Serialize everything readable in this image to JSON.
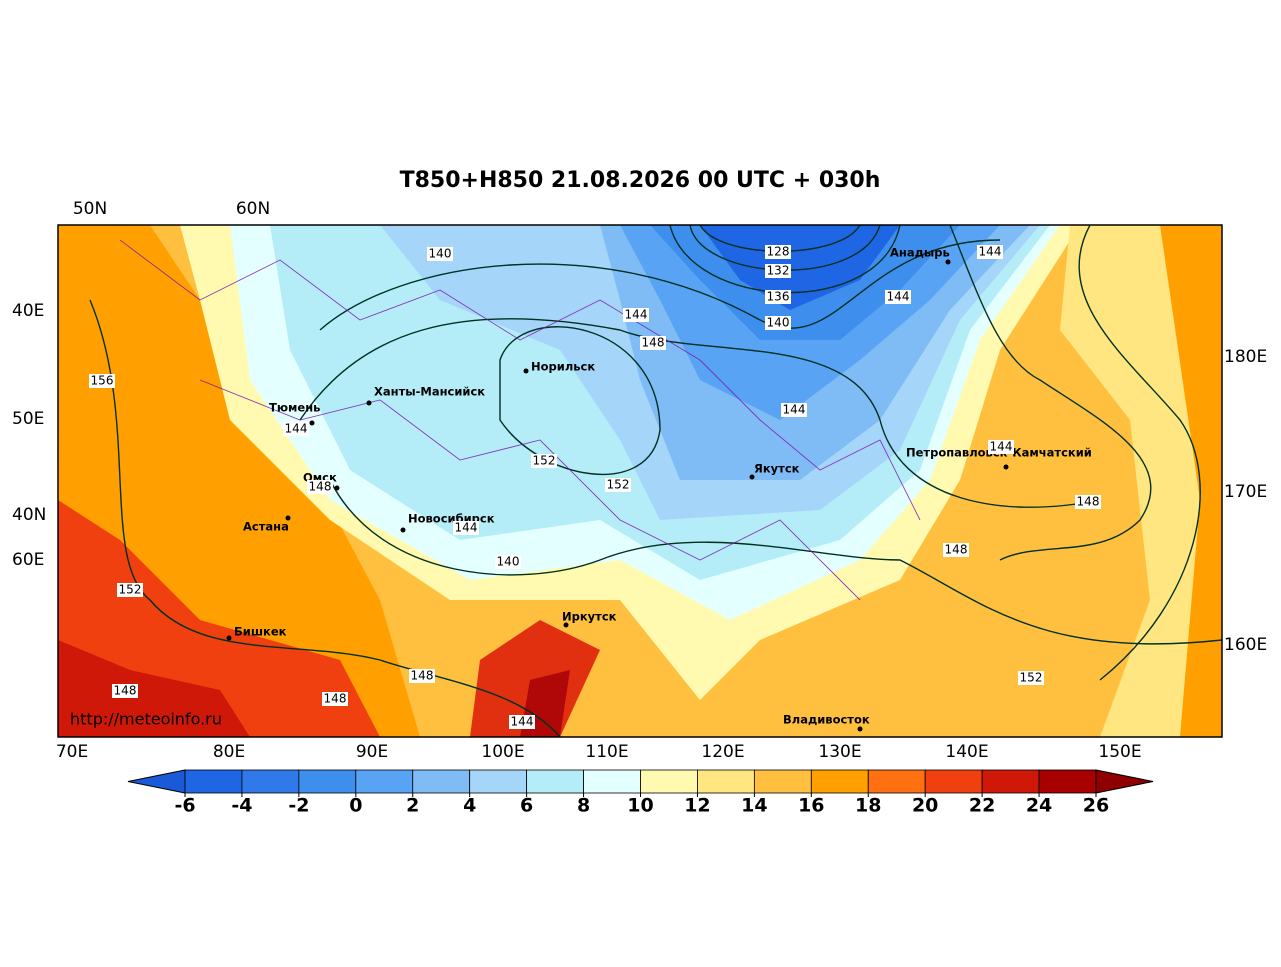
{
  "title": "T850+H850 21.08.2026 00 UTC + 030h",
  "top_labels": [
    "50N",
    "60N"
  ],
  "left_labels": [
    "40E",
    "50E",
    "40N",
    "60E"
  ],
  "right_labels": [
    "180E",
    "170E",
    "160E"
  ],
  "bottom_labels": [
    "70E",
    "80E",
    "90E",
    "100E",
    "110E",
    "120E",
    "130E",
    "140E",
    "150E"
  ],
  "cities": [
    "Анадырь",
    "Норильск",
    "Ханты-Мансийск",
    "Тюмень",
    "Петропавловск-Камчатский",
    "Якутск",
    "Омск",
    "Астана",
    "Новосибирск",
    "Иркутск",
    "Бишкек",
    "Владивосток"
  ],
  "contour_labels": [
    128,
    132,
    136,
    140,
    140,
    144,
    148,
    144,
    144,
    144,
    144,
    148,
    148,
    152,
    156,
    144,
    148,
    144,
    152,
    152,
    140,
    152,
    148,
    148,
    148,
    144
  ],
  "credit": "http://meteoinfo.ru",
  "colorbar": {
    "ticks": [
      -6,
      -4,
      -2,
      0,
      2,
      4,
      6,
      8,
      10,
      12,
      14,
      16,
      18,
      20,
      22,
      24,
      26
    ],
    "colors": [
      "#1a5ad8",
      "#1f66e5",
      "#2f7ae8",
      "#3e8eee",
      "#58a3f3",
      "#7fbcf6",
      "#a5d6fa",
      "#b4edf7",
      "#e4ffff",
      "#fffab0",
      "#ffe680",
      "#ffc040",
      "#ffa000",
      "#ff7010",
      "#f04010",
      "#d01808",
      "#a80000",
      "#900000"
    ]
  }
}
